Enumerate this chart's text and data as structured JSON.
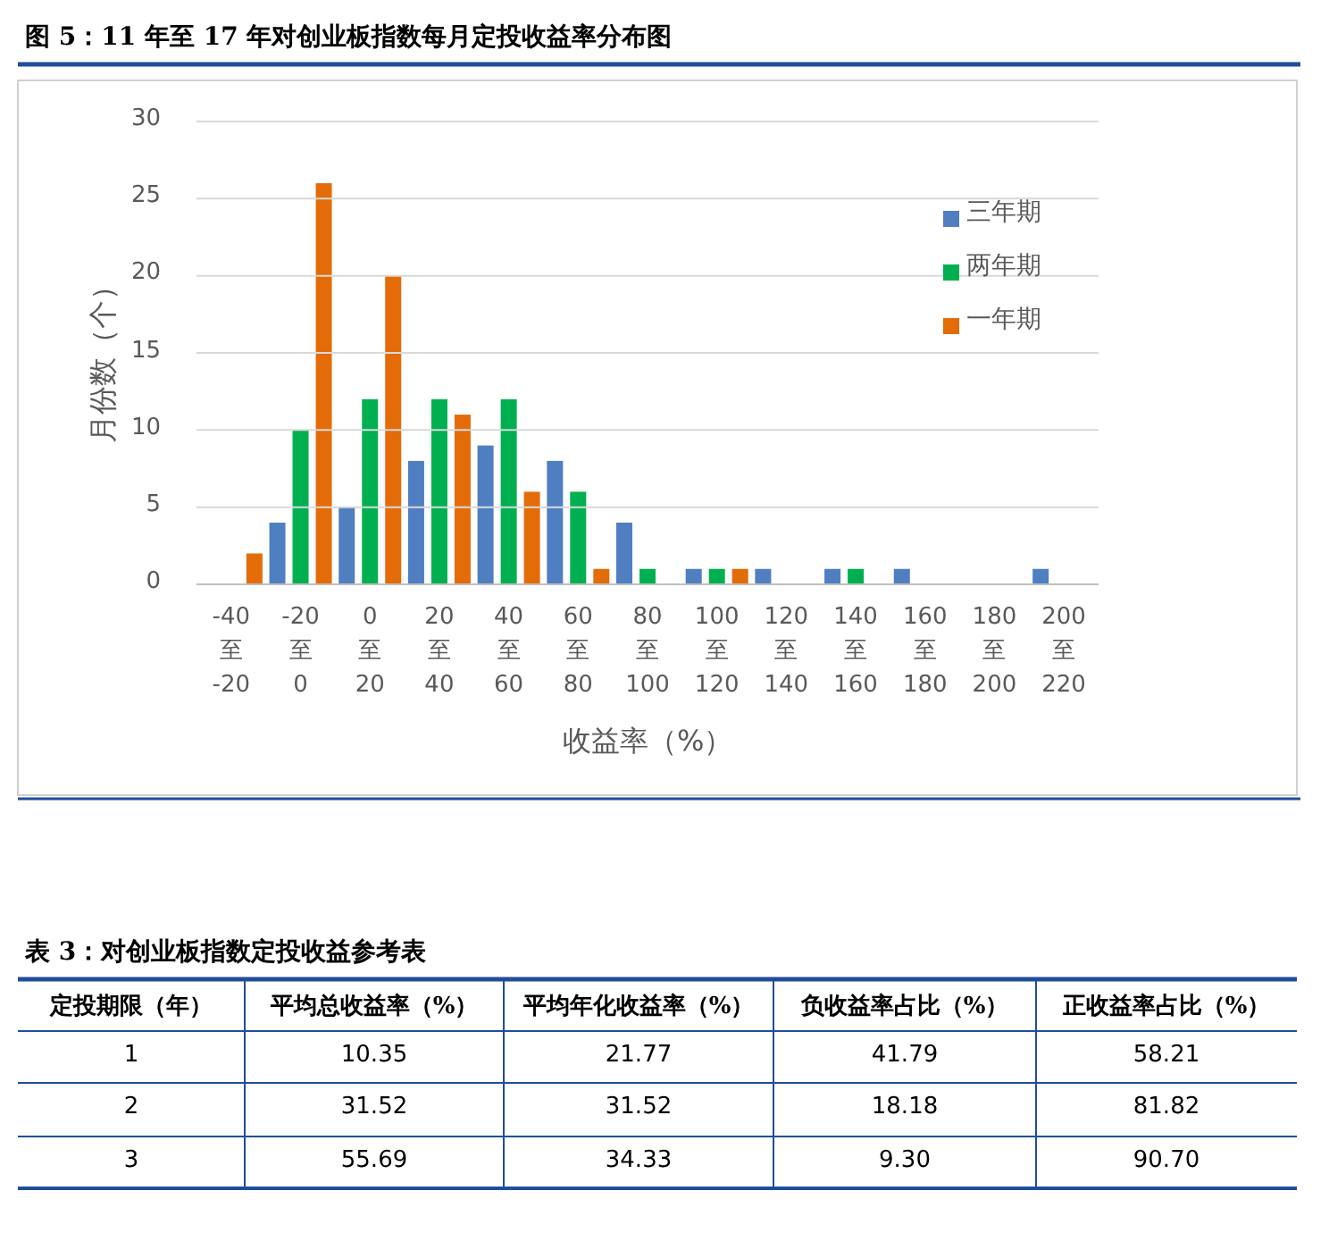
{
  "chart_data": [
    {
      "type": "bar",
      "title": "图 5：11 年至 17 年对创业板指数每月定投收益率分布图",
      "xlabel": "收益率（%）",
      "ylabel": "月份数（个）",
      "categories": [
        "-40 至 -20",
        "-20 至 0",
        "0 至 20",
        "20 至 40",
        "40 至 60",
        "60 至 80",
        "80 至 100",
        "100 至 120",
        "120 至 140",
        "140 至 160",
        "160 至 180",
        "180 至 200",
        "200 至 220"
      ],
      "series": [
        {
          "name": "三年期",
          "color": "#4f7fc0",
          "values": [
            0,
            4,
            5,
            8,
            9,
            8,
            4,
            1,
            1,
            1,
            1,
            0,
            1
          ]
        },
        {
          "name": "两年期",
          "color": "#00b050",
          "values": [
            0,
            10,
            12,
            12,
            12,
            6,
            1,
            1,
            0,
            1,
            0,
            0,
            0
          ]
        },
        {
          "name": "一年期",
          "color": "#e36c09",
          "values": [
            2,
            26,
            20,
            11,
            6,
            1,
            0,
            1,
            0,
            0,
            0,
            0,
            0
          ]
        }
      ],
      "ylim": [
        0,
        30
      ],
      "yticks": [
        0,
        5,
        10,
        15,
        20,
        25,
        30
      ],
      "grid": "y",
      "legend": "top right"
    },
    {
      "type": "other",
      "title": "表 3：对创业板指数定投收益参考表",
      "categories": [
        "定投期限（年）",
        "平均总收益率（%）",
        "平均年化收益率（%）",
        "负收益率占比（%）",
        "正收益率占比（%）"
      ],
      "annotations": [
        "1",
        "10.35",
        "21.77",
        "41.79",
        "58.21",
        "2",
        "31.52",
        "31.52",
        "18.18",
        "81.82",
        "3",
        "55.69",
        "34.33",
        "9.30",
        "90.70"
      ]
    }
  ]
}
